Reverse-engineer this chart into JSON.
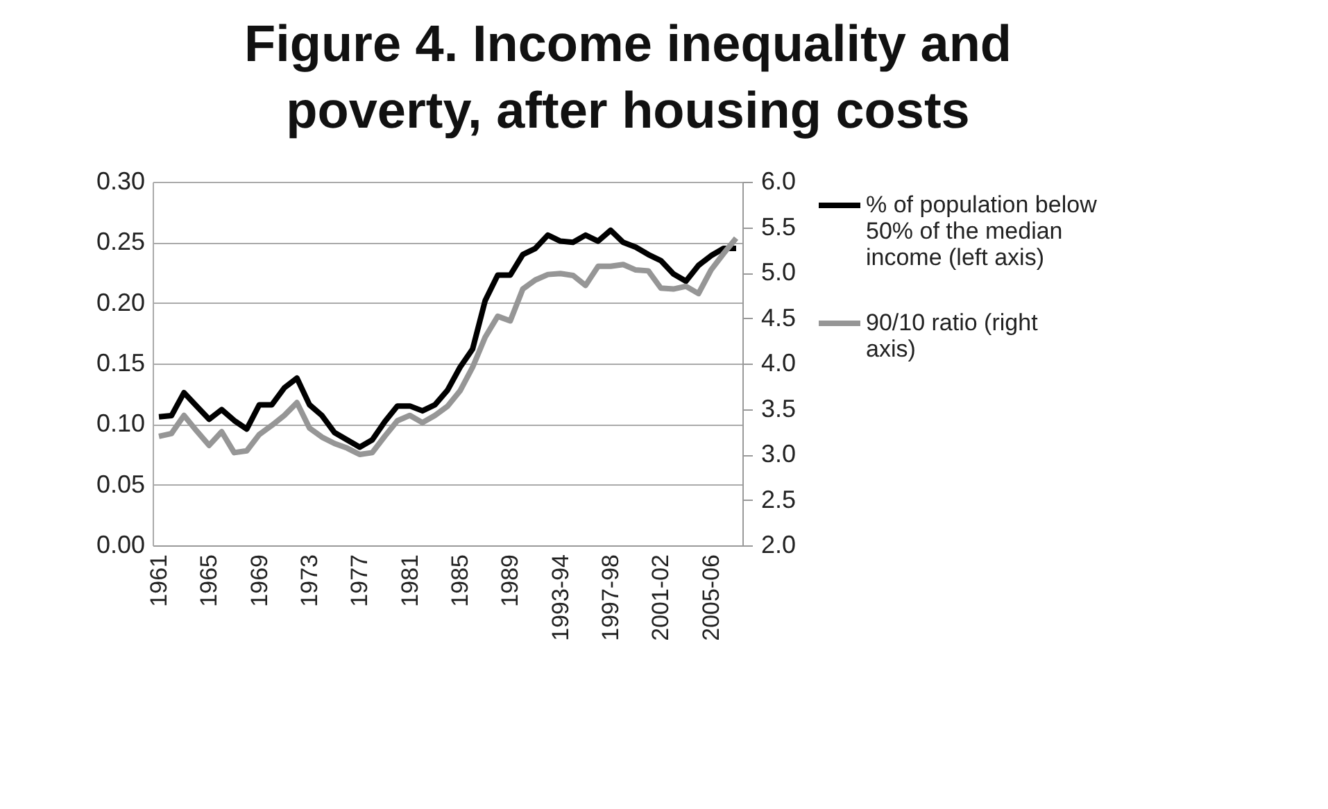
{
  "chart_data": {
    "type": "line",
    "title": "Figure 4. Income inequality and poverty, after housing costs",
    "categories": [
      "1961",
      null,
      null,
      null,
      "1965",
      null,
      null,
      null,
      "1969",
      null,
      null,
      null,
      "1973",
      null,
      null,
      null,
      "1977",
      null,
      null,
      null,
      "1981",
      null,
      null,
      null,
      "1985",
      null,
      null,
      null,
      "1989",
      null,
      null,
      null,
      "1993-94",
      null,
      null,
      null,
      "1997-98",
      null,
      null,
      null,
      "2001-02",
      null,
      null,
      null,
      "2005-06",
      null,
      null
    ],
    "series": [
      {
        "name": "% of population below 50% of the median income (left axis)",
        "color": "#000000",
        "values": [
          0.106,
          0.107,
          0.126,
          0.115,
          0.104,
          0.112,
          0.103,
          0.096,
          0.116,
          0.116,
          0.13,
          0.138,
          0.116,
          0.107,
          0.093,
          0.087,
          0.081,
          0.087,
          0.102,
          0.115,
          0.115,
          0.111,
          0.116,
          0.128,
          0.147,
          0.162,
          0.202,
          0.223,
          0.223,
          0.24,
          0.245,
          0.256,
          0.251,
          0.25,
          0.256,
          0.251,
          0.26,
          0.25,
          0.246,
          0.24,
          0.235,
          0.224,
          0.218,
          0.231,
          0.239,
          0.245,
          0.245
        ]
      },
      {
        "name": "90/10 ratio (right axis)",
        "color": "#969696",
        "axis": "y2",
        "values": [
          3.2,
          3.23,
          3.43,
          3.26,
          3.1,
          3.25,
          3.02,
          3.04,
          3.22,
          3.32,
          3.43,
          3.57,
          3.29,
          3.19,
          3.12,
          3.07,
          3.0,
          3.02,
          3.2,
          3.37,
          3.43,
          3.35,
          3.43,
          3.53,
          3.7,
          3.96,
          4.29,
          4.52,
          4.47,
          4.82,
          4.92,
          4.98,
          4.99,
          4.97,
          4.86,
          5.07,
          5.07,
          5.09,
          5.03,
          5.02,
          4.83,
          4.82,
          4.85,
          4.77,
          5.03,
          5.21,
          5.38
        ]
      }
    ],
    "ylim": [
      0,
      0.3
    ],
    "yticks": [
      {
        "value": 0,
        "label": "0.00"
      },
      {
        "value": 0.05,
        "label": "0.05"
      },
      {
        "value": 0.1,
        "label": "0.10"
      },
      {
        "value": 0.15,
        "label": "0.15"
      },
      {
        "value": 0.2,
        "label": "0.20"
      },
      {
        "value": 0.25,
        "label": "0.25"
      },
      {
        "value": 0.3,
        "label": "0.30"
      }
    ],
    "y2lim": [
      2,
      6
    ],
    "y2ticks": [
      {
        "value": 2,
        "label": "2.0"
      },
      {
        "value": 2.5,
        "label": "2.5"
      },
      {
        "value": 3,
        "label": "3.0"
      },
      {
        "value": 3.5,
        "label": "3.5"
      },
      {
        "value": 4,
        "label": "4.0"
      },
      {
        "value": 4.5,
        "label": "4.5"
      },
      {
        "value": 5,
        "label": "5.0"
      },
      {
        "value": 5.5,
        "label": "5.5"
      },
      {
        "value": 6,
        "label": "6.0"
      }
    ],
    "grid": "y",
    "legend": "right"
  }
}
